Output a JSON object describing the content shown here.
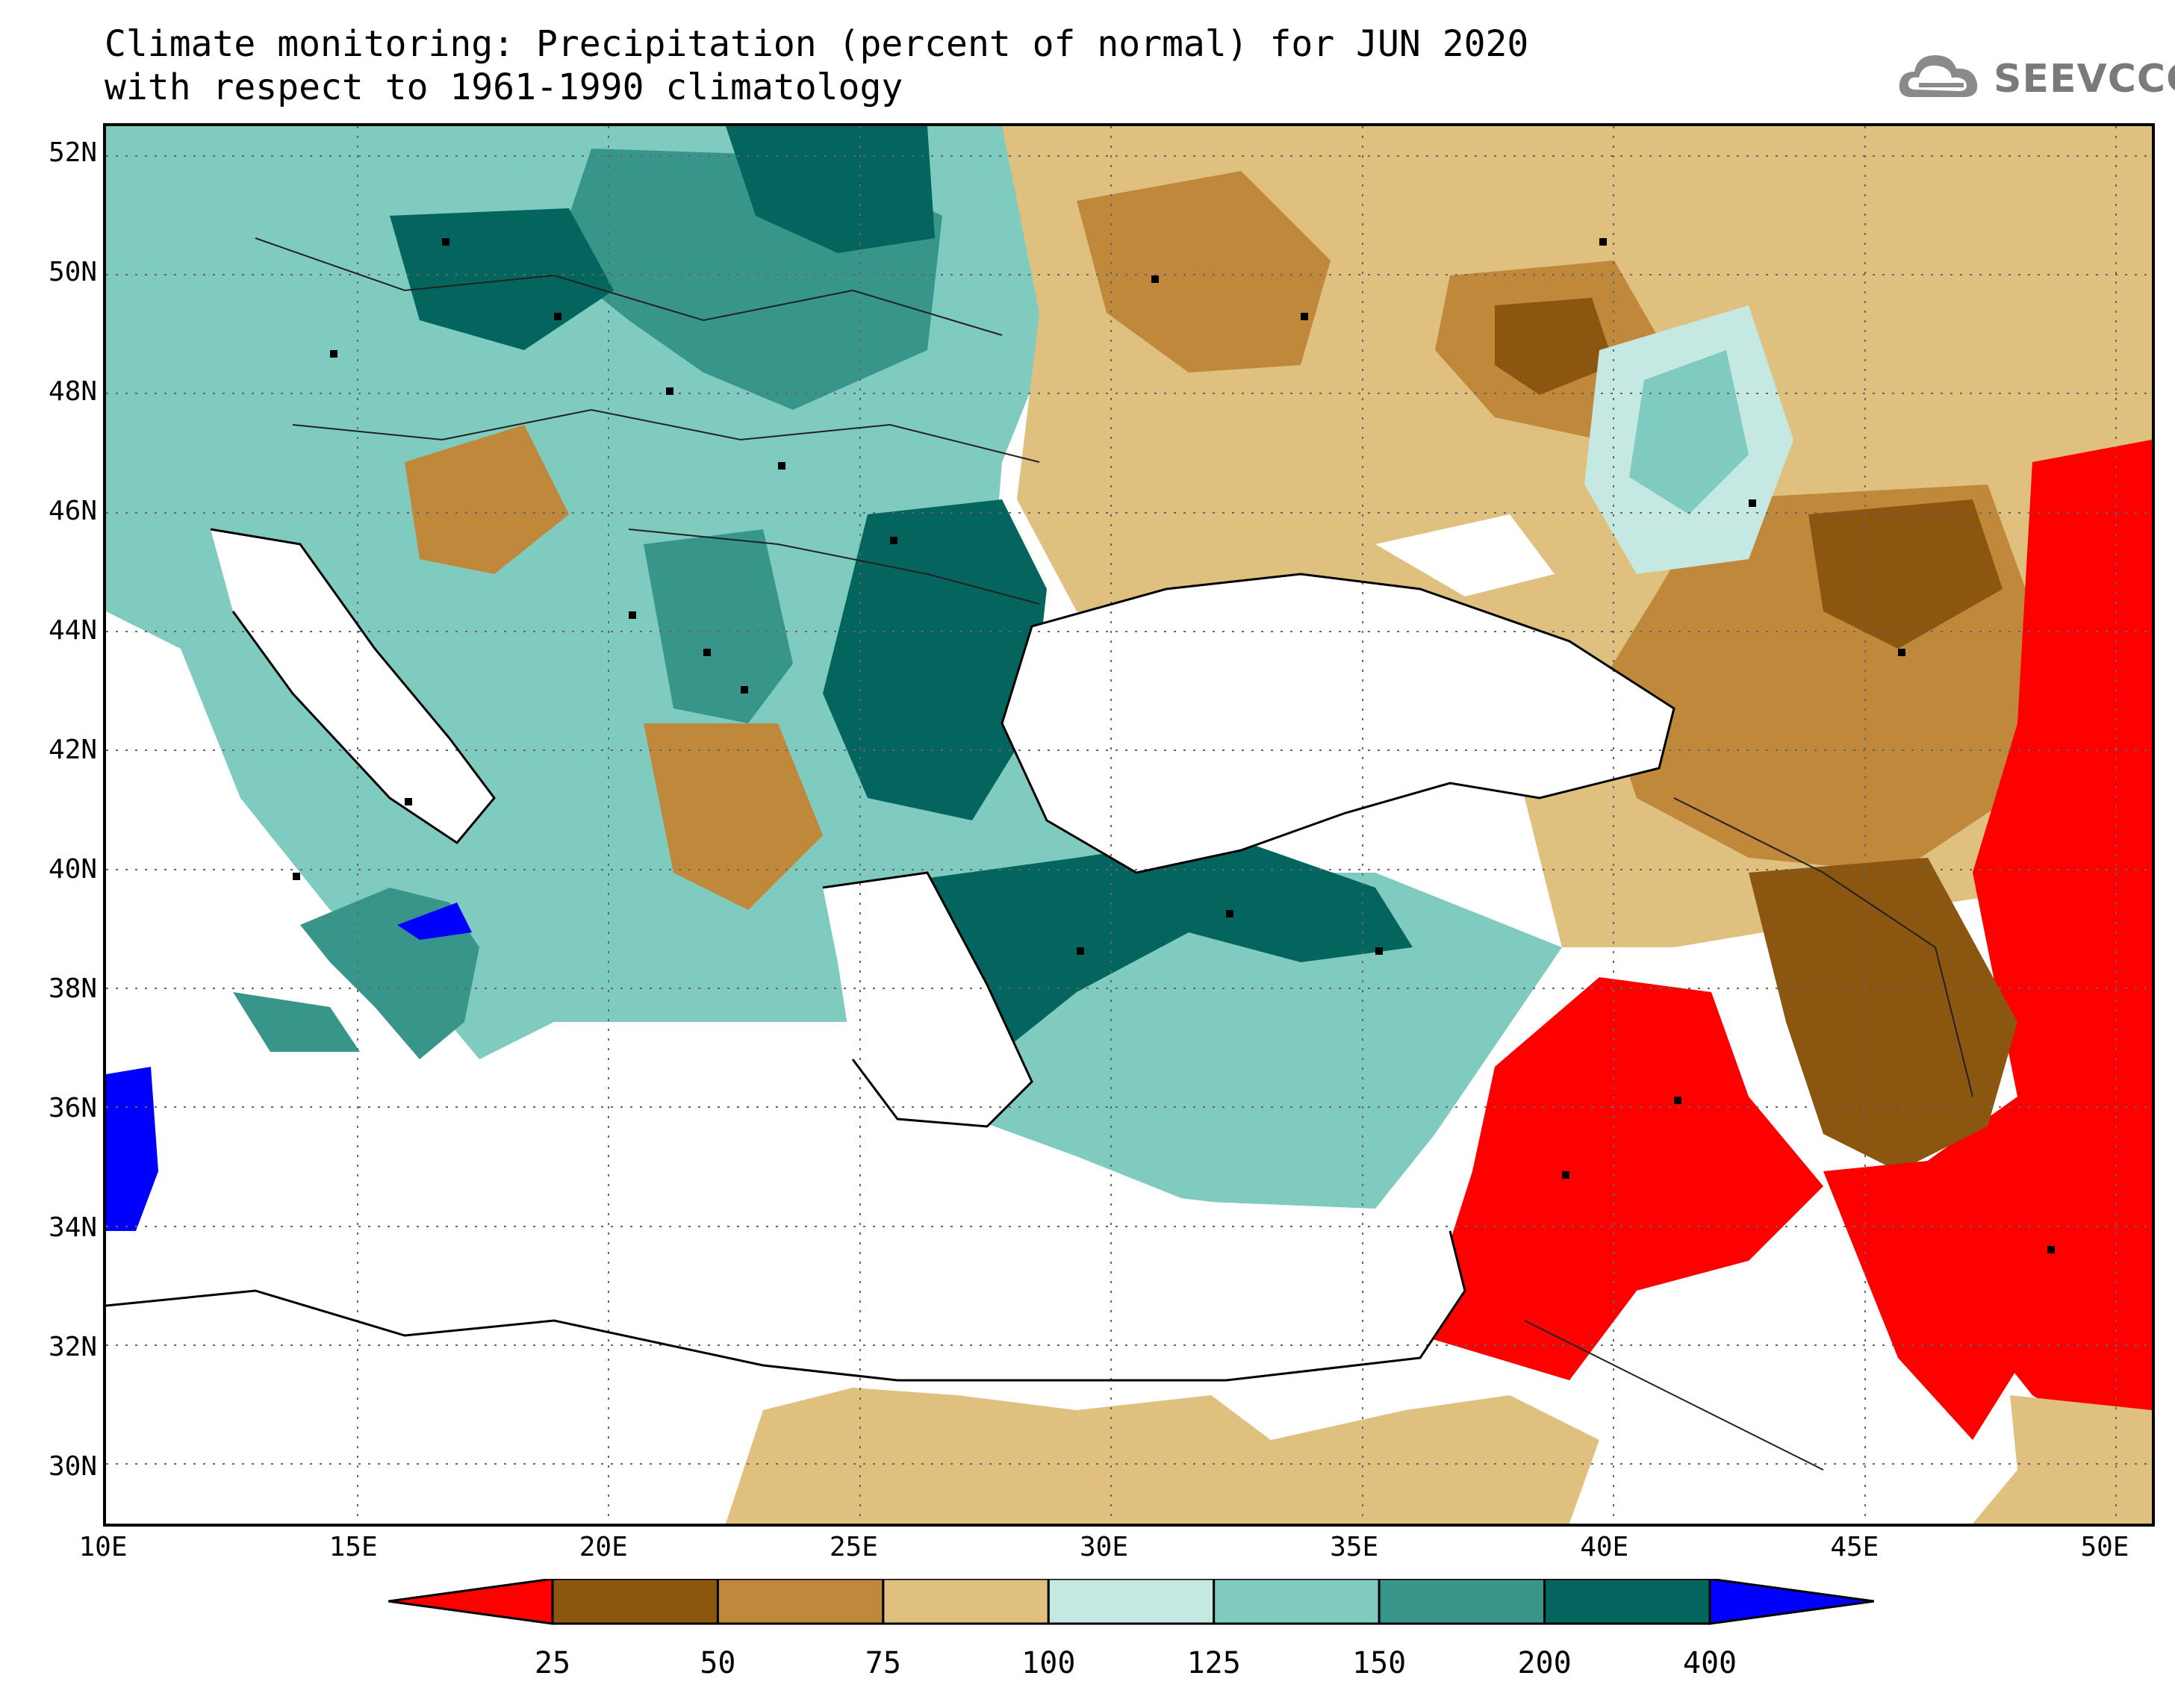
{
  "title": {
    "line1": "Climate monitoring: Precipitation (percent of normal) for JUN 2020",
    "line2": "with respect to 1961-1990 climatology"
  },
  "logo": {
    "text": "SEEVCCC",
    "icon": "cloud-icon"
  },
  "map": {
    "lon_range": [
      10,
      51
    ],
    "lat_range": [
      29,
      52.5
    ],
    "lat_ticks": [
      {
        "value": 52,
        "label": "52N"
      },
      {
        "value": 50,
        "label": "50N"
      },
      {
        "value": 48,
        "label": "48N"
      },
      {
        "value": 46,
        "label": "46N"
      },
      {
        "value": 44,
        "label": "44N"
      },
      {
        "value": 42,
        "label": "42N"
      },
      {
        "value": 40,
        "label": "40N"
      },
      {
        "value": 38,
        "label": "38N"
      },
      {
        "value": 36,
        "label": "36N"
      },
      {
        "value": 34,
        "label": "34N"
      },
      {
        "value": 32,
        "label": "32N"
      },
      {
        "value": 30,
        "label": "30N"
      }
    ],
    "lon_ticks": [
      {
        "value": 10,
        "label": "10E"
      },
      {
        "value": 15,
        "label": "15E"
      },
      {
        "value": 20,
        "label": "20E"
      },
      {
        "value": 25,
        "label": "25E"
      },
      {
        "value": 30,
        "label": "30E"
      },
      {
        "value": 35,
        "label": "35E"
      },
      {
        "value": 40,
        "label": "40E"
      },
      {
        "value": 45,
        "label": "45E"
      },
      {
        "value": 50,
        "label": "50E"
      }
    ],
    "grid": true
  },
  "legend": {
    "colors": [
      "#ff0000",
      "#8b5610",
      "#c0883a",
      "#dfc07e",
      "#c6e8e2",
      "#7fcbbf",
      "#37958a",
      "#03655d",
      "#0000ff"
    ],
    "tick_labels": [
      "25",
      "50",
      "75",
      "100",
      "125",
      "150",
      "200",
      "400"
    ]
  }
}
